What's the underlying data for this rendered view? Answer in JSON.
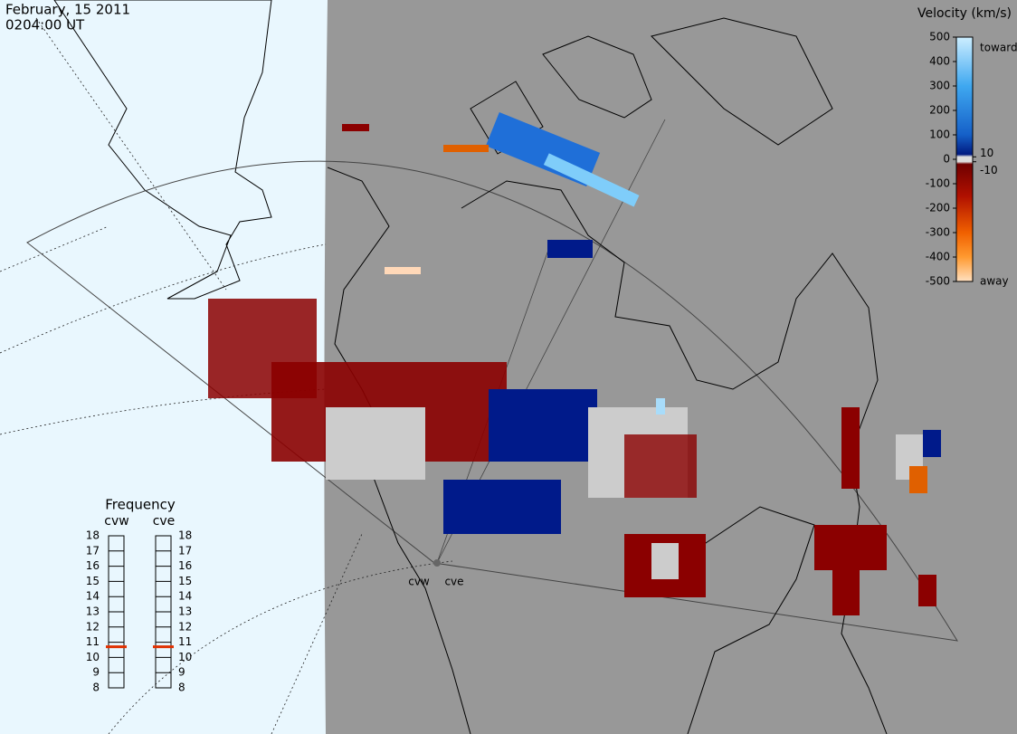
{
  "header": {
    "date": "February, 15 2011",
    "time": "0204:00 UT"
  },
  "velocity_scale": {
    "title": "Velocity (km/s)",
    "ylim": [
      -500,
      500
    ],
    "ticks": [
      500,
      400,
      300,
      200,
      100,
      0,
      -100,
      -200,
      -300,
      -400,
      -500
    ],
    "inner_ticks": [
      10,
      -10
    ],
    "top_label": "toward",
    "bottom_label": "away"
  },
  "frequency": {
    "title": "Frequency",
    "ylim": [
      8,
      18
    ],
    "ticks": [
      8,
      9,
      10,
      11,
      12,
      13,
      14,
      15,
      16,
      17,
      18
    ],
    "radars": [
      {
        "name": "cvw",
        "value": 10.7
      },
      {
        "name": "cve",
        "value": 10.7
      }
    ]
  },
  "sites": [
    "cvw",
    "cve"
  ]
}
